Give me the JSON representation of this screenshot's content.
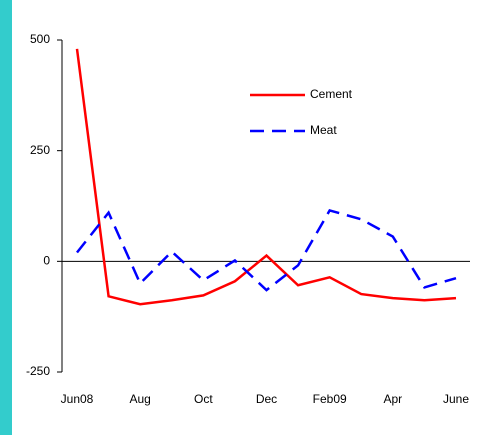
{
  "chart_data": {
    "type": "line",
    "categories": [
      "Jun08",
      null,
      "Aug",
      null,
      "Oct",
      null,
      "Dec",
      null,
      "Feb09",
      null,
      "Apr",
      null,
      "June"
    ],
    "series": [
      {
        "name": "Cement",
        "color": "#ff0000",
        "dash": false,
        "values": [
          480,
          -79,
          -97,
          -88,
          -77,
          -45,
          13,
          -54,
          -36,
          -74,
          -83,
          -88,
          -83
        ]
      },
      {
        "name": "Meat",
        "color": "#0000ff",
        "dash": true,
        "values": [
          20,
          110,
          -50,
          22,
          -43,
          2,
          -65,
          -9,
          115,
          95,
          56,
          -59,
          -38
        ]
      }
    ],
    "ylim": [
      -250,
      500
    ],
    "yticks": [
      -250,
      0,
      250,
      500
    ]
  }
}
